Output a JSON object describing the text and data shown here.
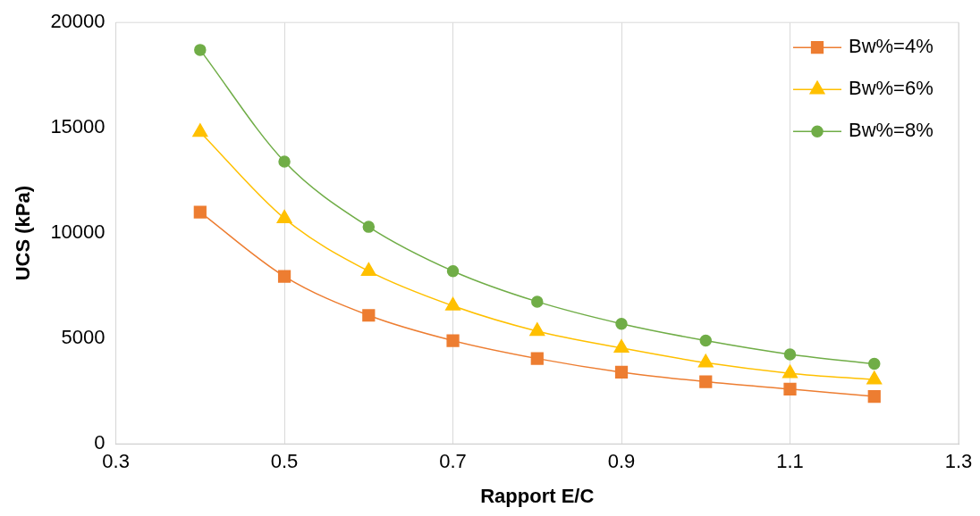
{
  "chart_data": {
    "type": "line",
    "xlabel": "Rapport E/C",
    "ylabel": "UCS (kPa)",
    "x": [
      0.4,
      0.5,
      0.6,
      0.7,
      0.8,
      0.9,
      1.0,
      1.1,
      1.2
    ],
    "series": [
      {
        "name": "Bw%=4%",
        "color": "#ed7d31",
        "marker": "square",
        "values": [
          11000,
          7950,
          6100,
          4900,
          4050,
          3400,
          2950,
          2600,
          2250
        ]
      },
      {
        "name": "Bw%=6%",
        "color": "#ffc000",
        "marker": "triangle",
        "values": [
          14800,
          10700,
          8200,
          6550,
          5350,
          4550,
          3850,
          3350,
          3050
        ]
      },
      {
        "name": "Bw%=8%",
        "color": "#70ad47",
        "marker": "circle",
        "values": [
          18700,
          13400,
          10300,
          8200,
          6750,
          5700,
          4900,
          4250,
          3800
        ]
      }
    ],
    "xlim": [
      0.3,
      1.3
    ],
    "xticks": [
      0.3,
      0.5,
      0.7,
      0.9,
      1.1,
      1.3
    ],
    "ylim": [
      0,
      20000
    ],
    "yticks": [
      0,
      5000,
      10000,
      15000,
      20000
    ],
    "grid": "x",
    "legend": "top right",
    "line_style": "solid"
  }
}
